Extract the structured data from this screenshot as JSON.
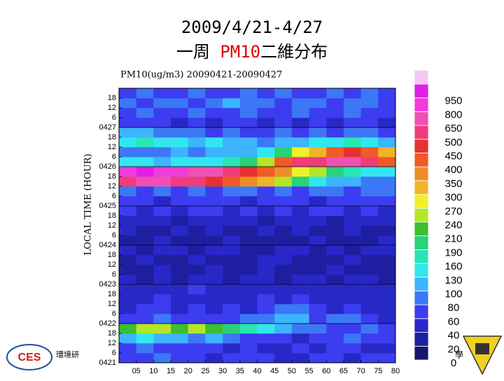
{
  "slide": {
    "title_line1": "2009/4/21-4/27",
    "title_parts": [
      "一周 ",
      "PM10",
      "二維分布"
    ],
    "logo": "CES",
    "institute": "環境研",
    "corner": "學"
  },
  "chart_data": {
    "type": "heatmap",
    "title": "PM10(ug/m3) 20090421-20090427",
    "ylabel": "LOCAL TIME (HOUR)",
    "xlim": [
      0,
      80
    ],
    "xticks": [
      {
        "value": 5,
        "label": "05"
      },
      10,
      15,
      20,
      25,
      30,
      35,
      40,
      45,
      50,
      55,
      60,
      65,
      70,
      75,
      80
    ],
    "ylim": [
      0,
      168
    ],
    "yticks": [
      {
        "value": 0,
        "label": "0421"
      },
      6,
      12,
      18,
      {
        "value": 24,
        "label": "0422"
      },
      {
        "value": 30,
        "label": "6"
      },
      {
        "value": 36,
        "label": "12"
      },
      {
        "value": 42,
        "label": "18"
      },
      {
        "value": 48,
        "label": "0423"
      },
      {
        "value": 54,
        "label": "6"
      },
      {
        "value": 60,
        "label": "12"
      },
      {
        "value": 66,
        "label": "18"
      },
      {
        "value": 72,
        "label": "0424"
      },
      {
        "value": 78,
        "label": "6"
      },
      {
        "value": 84,
        "label": "12"
      },
      {
        "value": 90,
        "label": "18"
      },
      {
        "value": 96,
        "label": "0425"
      },
      {
        "value": 102,
        "label": "6"
      },
      {
        "value": 108,
        "label": "12"
      },
      {
        "value": 114,
        "label": "18"
      },
      {
        "value": 120,
        "label": "0426"
      },
      {
        "value": 126,
        "label": "6"
      },
      {
        "value": 132,
        "label": "12"
      },
      {
        "value": 138,
        "label": "18"
      },
      {
        "value": 144,
        "label": "0427"
      },
      {
        "value": 150,
        "label": "6"
      },
      {
        "value": 156,
        "label": "12"
      },
      {
        "value": 162,
        "label": "18"
      }
    ],
    "x": [
      2.5,
      7.5,
      12.5,
      17.5,
      22.5,
      27.5,
      32.5,
      37.5,
      42.5,
      47.5,
      52.5,
      57.5,
      62.5,
      67.5,
      72.5,
      77.5
    ],
    "y": [
      3,
      9,
      15,
      21,
      27,
      33,
      39,
      45,
      51,
      57,
      63,
      69,
      75,
      81,
      87,
      93,
      99,
      105,
      111,
      117,
      123,
      129,
      135,
      141,
      147,
      153,
      159,
      165
    ],
    "z": [
      [
        60,
        60,
        80,
        60,
        60,
        40,
        60,
        60,
        60,
        40,
        40,
        60,
        60,
        40,
        60,
        60
      ],
      [
        60,
        80,
        60,
        60,
        60,
        60,
        40,
        60,
        40,
        40,
        60,
        40,
        60,
        60,
        40,
        40
      ],
      [
        100,
        130,
        100,
        100,
        80,
        100,
        80,
        60,
        60,
        60,
        40,
        60,
        60,
        80,
        60,
        60
      ],
      [
        210,
        240,
        240,
        210,
        240,
        210,
        190,
        160,
        130,
        100,
        80,
        80,
        60,
        60,
        80,
        60
      ],
      [
        60,
        60,
        80,
        60,
        60,
        60,
        60,
        80,
        80,
        100,
        100,
        60,
        80,
        80,
        60,
        40
      ],
      [
        40,
        60,
        60,
        40,
        60,
        40,
        60,
        40,
        60,
        80,
        80,
        60,
        40,
        60,
        40,
        40
      ],
      [
        40,
        40,
        60,
        40,
        40,
        40,
        40,
        40,
        60,
        40,
        60,
        40,
        40,
        40,
        40,
        40
      ],
      [
        40,
        40,
        40,
        40,
        60,
        40,
        40,
        40,
        40,
        40,
        40,
        40,
        40,
        40,
        40,
        40
      ],
      [
        40,
        20,
        40,
        20,
        40,
        40,
        20,
        40,
        40,
        20,
        40,
        40,
        20,
        40,
        40,
        20
      ],
      [
        20,
        20,
        40,
        20,
        20,
        40,
        20,
        20,
        40,
        20,
        20,
        20,
        40,
        20,
        20,
        20
      ],
      [
        20,
        40,
        20,
        20,
        40,
        20,
        20,
        20,
        40,
        40,
        20,
        20,
        20,
        40,
        20,
        20
      ],
      [
        40,
        20,
        40,
        40,
        20,
        40,
        40,
        20,
        20,
        40,
        40,
        20,
        40,
        20,
        40,
        40
      ],
      [
        20,
        20,
        40,
        20,
        20,
        20,
        40,
        20,
        20,
        20,
        20,
        40,
        20,
        20,
        20,
        40
      ],
      [
        40,
        20,
        20,
        40,
        20,
        40,
        20,
        20,
        40,
        20,
        40,
        20,
        20,
        40,
        20,
        20
      ],
      [
        40,
        40,
        40,
        20,
        40,
        40,
        40,
        40,
        20,
        40,
        40,
        40,
        20,
        40,
        40,
        40
      ],
      [
        60,
        40,
        60,
        40,
        60,
        60,
        40,
        60,
        40,
        60,
        40,
        60,
        60,
        40,
        60,
        40
      ],
      [
        60,
        60,
        40,
        60,
        60,
        60,
        60,
        40,
        60,
        60,
        60,
        40,
        60,
        60,
        60,
        60
      ],
      [
        80,
        60,
        80,
        60,
        80,
        60,
        80,
        80,
        60,
        80,
        60,
        80,
        80,
        60,
        80,
        80
      ],
      [
        500,
        650,
        650,
        500,
        500,
        450,
        400,
        350,
        300,
        240,
        190,
        130,
        100,
        100,
        80,
        80
      ],
      [
        800,
        950,
        800,
        800,
        650,
        650,
        500,
        450,
        400,
        350,
        270,
        240,
        190,
        160,
        130,
        130
      ],
      [
        130,
        130,
        100,
        130,
        130,
        130,
        160,
        190,
        240,
        400,
        500,
        500,
        650,
        650,
        500,
        400
      ],
      [
        80,
        80,
        80,
        100,
        80,
        100,
        100,
        100,
        130,
        190,
        270,
        300,
        400,
        450,
        400,
        300
      ],
      [
        130,
        160,
        130,
        130,
        100,
        130,
        100,
        100,
        80,
        100,
        100,
        130,
        130,
        160,
        130,
        100
      ],
      [
        100,
        100,
        80,
        80,
        80,
        60,
        80,
        60,
        60,
        80,
        60,
        80,
        60,
        80,
        80,
        60
      ],
      [
        60,
        60,
        60,
        40,
        60,
        40,
        60,
        60,
        40,
        60,
        40,
        60,
        40,
        60,
        60,
        40
      ],
      [
        60,
        80,
        60,
        60,
        80,
        60,
        60,
        80,
        60,
        60,
        80,
        60,
        60,
        80,
        60,
        60
      ],
      [
        80,
        60,
        80,
        80,
        60,
        80,
        100,
        80,
        80,
        60,
        80,
        80,
        60,
        80,
        80,
        60
      ],
      [
        60,
        80,
        60,
        60,
        80,
        60,
        60,
        80,
        60,
        80,
        60,
        60,
        80,
        60,
        80,
        60
      ]
    ],
    "colorbar": {
      "levels": [
        0,
        20,
        40,
        60,
        80,
        100,
        130,
        160,
        190,
        210,
        240,
        270,
        300,
        350,
        400,
        450,
        500,
        650,
        800,
        950
      ],
      "colors": [
        "#16166e",
        "#1e1ea0",
        "#2828c8",
        "#3c3cf0",
        "#3c78f5",
        "#3cb4ff",
        "#32e6f0",
        "#28e6b4",
        "#28d278",
        "#3cbe32",
        "#b4e628",
        "#f0f028",
        "#f0b428",
        "#f08c28",
        "#f05a28",
        "#e63232",
        "#f03c78",
        "#f050b4",
        "#f03cdc",
        "#e01ee8"
      ],
      "over_color": "#f8c8f4"
    }
  }
}
